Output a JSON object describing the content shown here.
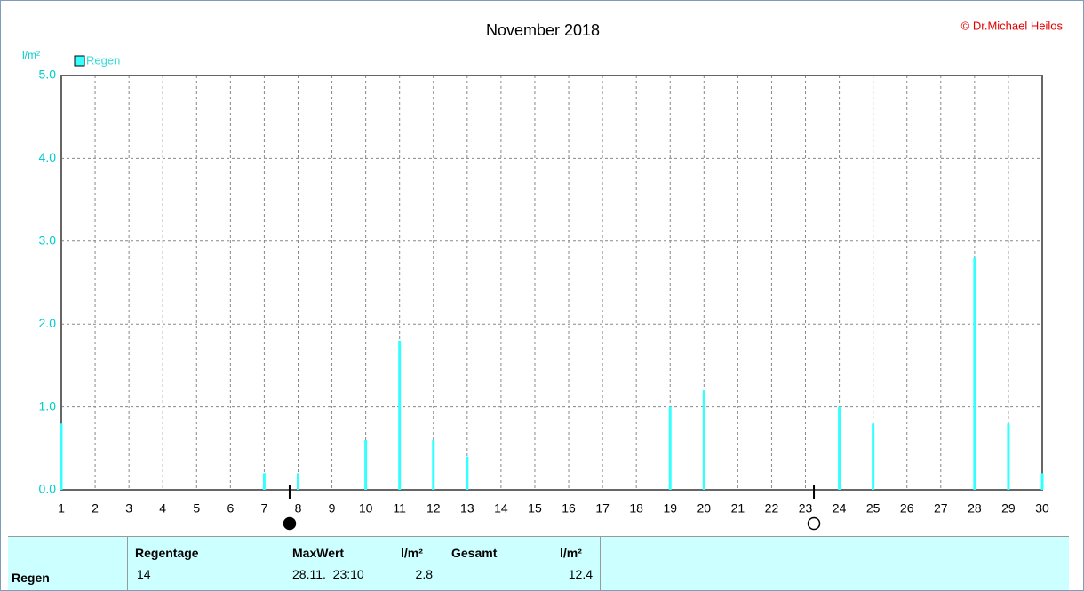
{
  "chart_data": {
    "type": "bar",
    "title": "November 2018",
    "credit": "© Dr.Michael Heilos",
    "y_label": "l/m²",
    "series": [
      {
        "name": "Regen",
        "color": "#33ffff",
        "x": [
          1,
          7,
          8,
          10,
          11,
          12,
          13,
          19,
          20,
          24,
          25,
          28,
          29,
          30
        ],
        "values": [
          0.8,
          0.2,
          0.2,
          0.6,
          1.8,
          0.6,
          0.4,
          1.0,
          1.2,
          1.0,
          0.8,
          2.8,
          0.8,
          0.2
        ]
      }
    ],
    "xlim": [
      1,
      30
    ],
    "xticks": [
      1,
      2,
      3,
      4,
      5,
      6,
      7,
      8,
      9,
      10,
      11,
      12,
      13,
      14,
      15,
      16,
      17,
      18,
      19,
      20,
      21,
      22,
      23,
      24,
      25,
      26,
      27,
      28,
      29,
      30
    ],
    "ylim": [
      0,
      5
    ],
    "yticks": [
      {
        "value": 0,
        "label": "0.0"
      },
      {
        "value": 1,
        "label": "1.0"
      },
      {
        "value": 2,
        "label": "2.0"
      },
      {
        "value": 3,
        "label": "3.0"
      },
      {
        "value": 4,
        "label": "4.0"
      },
      {
        "value": 5,
        "label": "5.0"
      }
    ],
    "grid": true,
    "moon_markers": [
      {
        "x": 7.75,
        "filled": true
      },
      {
        "x": 23.25,
        "filled": false
      }
    ]
  },
  "summary": {
    "row_label": "Regen",
    "regentage": {
      "header": "Regentage",
      "value": 14
    },
    "maxwert": {
      "header": "MaxWert",
      "unit": "l/m²",
      "time": "28.11.  23:10",
      "value": 2.8
    },
    "gesamt": {
      "header": "Gesamt",
      "unit": "l/m²",
      "value": 12.4
    }
  }
}
